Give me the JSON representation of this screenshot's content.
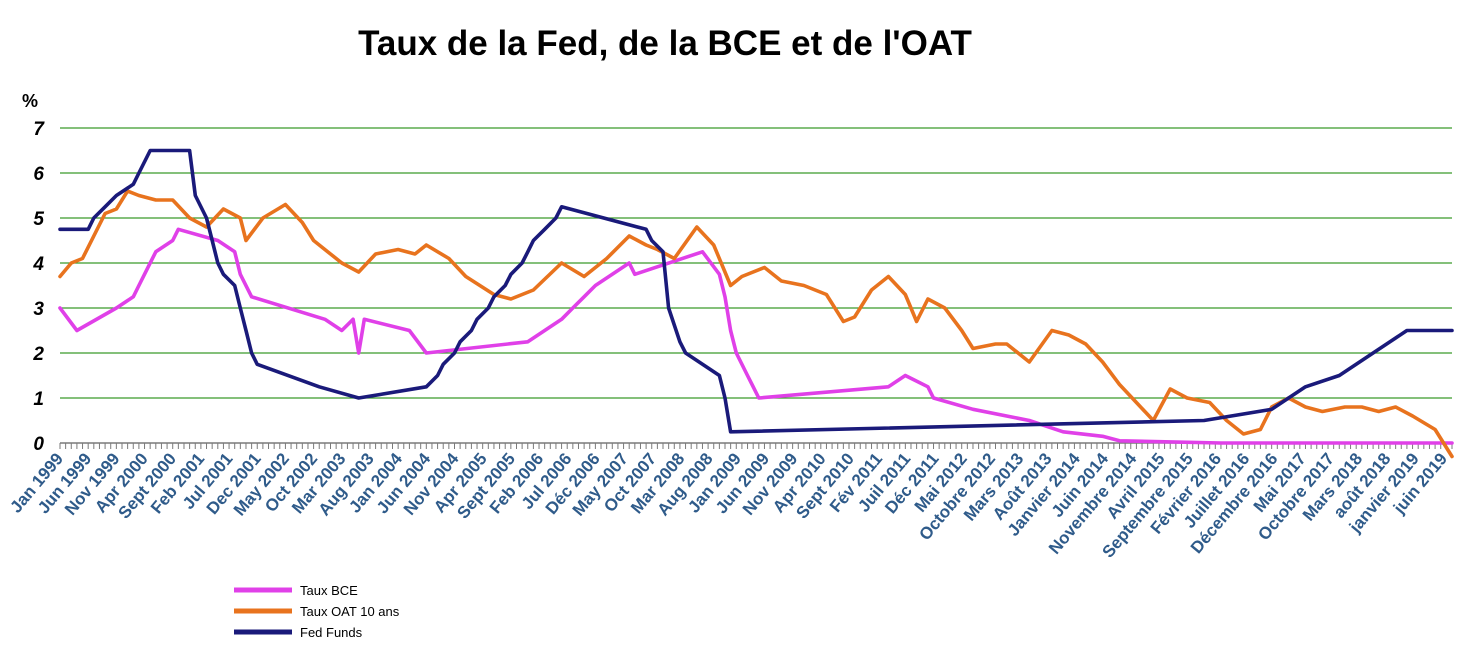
{
  "chart_data": {
    "type": "line",
    "title": "Taux de la Fed, de la BCE et de l'OAT",
    "ylabel": "%",
    "ylim": [
      0,
      7
    ],
    "yticks": [
      0,
      1,
      2,
      3,
      4,
      5,
      6,
      7
    ],
    "grid": true,
    "legend_position": "bottom-left",
    "x_range": [
      "1999-01",
      "2019-08"
    ],
    "x_tick_labels": [
      "Jan 1999",
      "Jun 1999",
      "Nov 1999",
      "Apr 2000",
      "Sept 2000",
      "Feb 2001",
      "Jul 2001",
      "Dec 2001",
      "May 2002",
      "Oct 2002",
      "Mar 2003",
      "Aug 2003",
      "Jan 2004",
      "Jun 2004",
      "Nov 2004",
      "Apr 2005",
      "Sept 2005",
      "Feb 2006",
      "Jul 2006",
      "Déc 2006",
      "May 2007",
      "Oct 2007",
      "Mar 2008",
      "Aug 2008",
      "Jan 2009",
      "Jun 2009",
      "Nov 2009",
      "Apr 2010",
      "Sept 2010",
      "Fév 2011",
      "Juil 2011",
      "Déc 2011",
      "Mai 2012",
      "Octobre 2012",
      "Mars 2013",
      "Août 2013",
      "Janvier 2014",
      "Juin 2014",
      "Novembre 2014",
      "Avril 2015",
      "Septembre 2015",
      "Février 2016",
      "Juillet 2016",
      "Décembre 2016",
      "Mai 2017",
      "Octobre 2017",
      "Mars 2018",
      "août 2018",
      "janvier 2019",
      "juin 2019"
    ],
    "series": [
      {
        "name": "Taux BCE",
        "color": "#e040e8",
        "points": [
          [
            "1999-01",
            3.0
          ],
          [
            "1999-04",
            2.5
          ],
          [
            "1999-11",
            3.0
          ],
          [
            "2000-02",
            3.25
          ],
          [
            "2000-03",
            3.5
          ],
          [
            "2000-04",
            3.75
          ],
          [
            "2000-06",
            4.25
          ],
          [
            "2000-09",
            4.5
          ],
          [
            "2000-10",
            4.75
          ],
          [
            "2001-05",
            4.5
          ],
          [
            "2001-08",
            4.25
          ],
          [
            "2001-09",
            3.75
          ],
          [
            "2001-11",
            3.25
          ],
          [
            "2002-12",
            2.75
          ],
          [
            "2003-03",
            2.5
          ],
          [
            "2003-05",
            2.75
          ],
          [
            "2003-06",
            2.0
          ],
          [
            "2003-07",
            2.75
          ],
          [
            "2004-03",
            2.5
          ],
          [
            "2004-06",
            2.0
          ],
          [
            "2005-12",
            2.25
          ],
          [
            "2006-03",
            2.5
          ],
          [
            "2006-06",
            2.75
          ],
          [
            "2006-08",
            3.0
          ],
          [
            "2006-10",
            3.25
          ],
          [
            "2006-12",
            3.5
          ],
          [
            "2007-03",
            3.75
          ],
          [
            "2007-06",
            4.0
          ],
          [
            "2007-07",
            3.75
          ],
          [
            "2008-07",
            4.25
          ],
          [
            "2008-10",
            3.75
          ],
          [
            "2008-11",
            3.25
          ],
          [
            "2008-12",
            2.5
          ],
          [
            "2009-01",
            2.0
          ],
          [
            "2009-03",
            1.5
          ],
          [
            "2009-04",
            1.25
          ],
          [
            "2009-05",
            1.0
          ],
          [
            "2011-04",
            1.25
          ],
          [
            "2011-07",
            1.5
          ],
          [
            "2011-11",
            1.25
          ],
          [
            "2011-12",
            1.0
          ],
          [
            "2012-07",
            0.75
          ],
          [
            "2013-05",
            0.5
          ],
          [
            "2013-11",
            0.25
          ],
          [
            "2014-06",
            0.15
          ],
          [
            "2014-09",
            0.05
          ],
          [
            "2016-03",
            0.0
          ],
          [
            "2019-08",
            0.0
          ]
        ]
      },
      {
        "name": "Taux OAT 10 ans",
        "color": "#e8731e",
        "points": [
          [
            "1999-01",
            3.7
          ],
          [
            "1999-03",
            4.0
          ],
          [
            "1999-05",
            4.1
          ],
          [
            "1999-07",
            4.6
          ],
          [
            "1999-09",
            5.1
          ],
          [
            "1999-11",
            5.2
          ],
          [
            "2000-01",
            5.6
          ],
          [
            "2000-03",
            5.5
          ],
          [
            "2000-06",
            5.4
          ],
          [
            "2000-09",
            5.4
          ],
          [
            "2000-12",
            5.0
          ],
          [
            "2001-03",
            4.8
          ],
          [
            "2001-06",
            5.2
          ],
          [
            "2001-09",
            5.0
          ],
          [
            "2001-10",
            4.5
          ],
          [
            "2002-01",
            5.0
          ],
          [
            "2002-05",
            5.3
          ],
          [
            "2002-08",
            4.9
          ],
          [
            "2002-10",
            4.5
          ],
          [
            "2003-01",
            4.2
          ],
          [
            "2003-03",
            4.0
          ],
          [
            "2003-06",
            3.8
          ],
          [
            "2003-09",
            4.2
          ],
          [
            "2004-01",
            4.3
          ],
          [
            "2004-04",
            4.2
          ],
          [
            "2004-06",
            4.4
          ],
          [
            "2004-10",
            4.1
          ],
          [
            "2005-01",
            3.7
          ],
          [
            "2005-06",
            3.3
          ],
          [
            "2005-09",
            3.2
          ],
          [
            "2006-01",
            3.4
          ],
          [
            "2006-06",
            4.0
          ],
          [
            "2006-10",
            3.7
          ],
          [
            "2007-02",
            4.1
          ],
          [
            "2007-06",
            4.6
          ],
          [
            "2007-09",
            4.4
          ],
          [
            "2007-11",
            4.3
          ],
          [
            "2008-02",
            4.1
          ],
          [
            "2008-06",
            4.8
          ],
          [
            "2008-09",
            4.4
          ],
          [
            "2008-12",
            3.5
          ],
          [
            "2009-02",
            3.7
          ],
          [
            "2009-06",
            3.9
          ],
          [
            "2009-09",
            3.6
          ],
          [
            "2010-01",
            3.5
          ],
          [
            "2010-05",
            3.3
          ],
          [
            "2010-08",
            2.7
          ],
          [
            "2010-10",
            2.8
          ],
          [
            "2011-01",
            3.4
          ],
          [
            "2011-04",
            3.7
          ],
          [
            "2011-07",
            3.3
          ],
          [
            "2011-09",
            2.7
          ],
          [
            "2011-11",
            3.2
          ],
          [
            "2012-02",
            3.0
          ],
          [
            "2012-05",
            2.5
          ],
          [
            "2012-07",
            2.1
          ],
          [
            "2012-11",
            2.2
          ],
          [
            "2013-01",
            2.2
          ],
          [
            "2013-05",
            1.8
          ],
          [
            "2013-09",
            2.5
          ],
          [
            "2013-12",
            2.4
          ],
          [
            "2014-03",
            2.2
          ],
          [
            "2014-06",
            1.8
          ],
          [
            "2014-09",
            1.3
          ],
          [
            "2014-12",
            0.9
          ],
          [
            "2015-03",
            0.5
          ],
          [
            "2015-06",
            1.2
          ],
          [
            "2015-09",
            1.0
          ],
          [
            "2016-01",
            0.9
          ],
          [
            "2016-04",
            0.5
          ],
          [
            "2016-07",
            0.2
          ],
          [
            "2016-10",
            0.3
          ],
          [
            "2016-12",
            0.8
          ],
          [
            "2017-03",
            1.0
          ],
          [
            "2017-06",
            0.8
          ],
          [
            "2017-09",
            0.7
          ],
          [
            "2018-01",
            0.8
          ],
          [
            "2018-04",
            0.8
          ],
          [
            "2018-07",
            0.7
          ],
          [
            "2018-10",
            0.8
          ],
          [
            "2019-01",
            0.6
          ],
          [
            "2019-05",
            0.3
          ],
          [
            "2019-08",
            -0.3
          ]
        ]
      },
      {
        "name": "Fed Funds",
        "color": "#1a1a7a",
        "points": [
          [
            "1999-01",
            4.75
          ],
          [
            "1999-06",
            4.75
          ],
          [
            "1999-07",
            5.0
          ],
          [
            "1999-09",
            5.25
          ],
          [
            "1999-11",
            5.5
          ],
          [
            "2000-02",
            5.75
          ],
          [
            "2000-03",
            6.0
          ],
          [
            "2000-05",
            6.5
          ],
          [
            "2000-12",
            6.5
          ],
          [
            "2001-01",
            5.5
          ],
          [
            "2001-03",
            5.0
          ],
          [
            "2001-04",
            4.5
          ],
          [
            "2001-05",
            4.0
          ],
          [
            "2001-06",
            3.75
          ],
          [
            "2001-08",
            3.5
          ],
          [
            "2001-09",
            3.0
          ],
          [
            "2001-10",
            2.5
          ],
          [
            "2001-11",
            2.0
          ],
          [
            "2001-12",
            1.75
          ],
          [
            "2002-11",
            1.25
          ],
          [
            "2003-06",
            1.0
          ],
          [
            "2004-06",
            1.25
          ],
          [
            "2004-08",
            1.5
          ],
          [
            "2004-09",
            1.75
          ],
          [
            "2004-11",
            2.0
          ],
          [
            "2004-12",
            2.25
          ],
          [
            "2005-02",
            2.5
          ],
          [
            "2005-03",
            2.75
          ],
          [
            "2005-05",
            3.0
          ],
          [
            "2005-06",
            3.25
          ],
          [
            "2005-08",
            3.5
          ],
          [
            "2005-09",
            3.75
          ],
          [
            "2005-11",
            4.0
          ],
          [
            "2005-12",
            4.25
          ],
          [
            "2006-01",
            4.5
          ],
          [
            "2006-03",
            4.75
          ],
          [
            "2006-05",
            5.0
          ],
          [
            "2006-06",
            5.25
          ],
          [
            "2007-09",
            4.75
          ],
          [
            "2007-10",
            4.5
          ],
          [
            "2007-12",
            4.25
          ],
          [
            "2008-01",
            3.0
          ],
          [
            "2008-03",
            2.25
          ],
          [
            "2008-04",
            2.0
          ],
          [
            "2008-10",
            1.5
          ],
          [
            "2008-11",
            1.0
          ],
          [
            "2008-12",
            0.25
          ],
          [
            "2015-12",
            0.5
          ],
          [
            "2016-12",
            0.75
          ],
          [
            "2017-03",
            1.0
          ],
          [
            "2017-06",
            1.25
          ],
          [
            "2017-12",
            1.5
          ],
          [
            "2018-03",
            1.75
          ],
          [
            "2018-06",
            2.0
          ],
          [
            "2018-09",
            2.25
          ],
          [
            "2018-12",
            2.5
          ],
          [
            "2019-08",
            2.5
          ]
        ]
      }
    ]
  }
}
